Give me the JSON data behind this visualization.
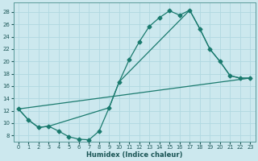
{
  "xlabel": "Humidex (Indice chaleur)",
  "bg_color": "#cce8ee",
  "grid_color": "#b0d8e0",
  "line_color": "#1a7a6e",
  "xlim": [
    -0.5,
    23.5
  ],
  "ylim": [
    7,
    29.5
  ],
  "yticks": [
    8,
    10,
    12,
    14,
    16,
    18,
    20,
    22,
    24,
    26,
    28
  ],
  "xticks": [
    0,
    1,
    2,
    3,
    4,
    5,
    6,
    7,
    8,
    9,
    10,
    11,
    12,
    13,
    14,
    15,
    16,
    17,
    18,
    19,
    20,
    21,
    22,
    23
  ],
  "curve1_x": [
    0,
    1,
    2,
    3,
    4,
    5,
    6,
    7,
    8,
    9,
    10,
    11,
    12,
    13,
    14,
    15,
    16,
    17,
    18,
    19,
    20,
    21,
    22,
    23
  ],
  "curve1_y": [
    12.3,
    10.5,
    9.3,
    9.5,
    8.7,
    7.8,
    7.4,
    7.3,
    8.7,
    12.5,
    16.7,
    20.3,
    23.2,
    25.7,
    27.1,
    28.2,
    27.5,
    28.3,
    25.3,
    22.0,
    20.0,
    17.7,
    17.3,
    17.3
  ],
  "curve2_x": [
    0,
    1,
    2,
    3,
    9,
    10,
    17,
    18,
    19,
    20,
    21,
    22,
    23
  ],
  "curve2_y": [
    12.3,
    10.5,
    9.3,
    9.5,
    12.5,
    16.7,
    28.3,
    25.3,
    22.0,
    20.0,
    17.7,
    17.3,
    17.3
  ],
  "curve3_x": [
    0,
    23
  ],
  "curve3_y": [
    12.3,
    17.3
  ]
}
